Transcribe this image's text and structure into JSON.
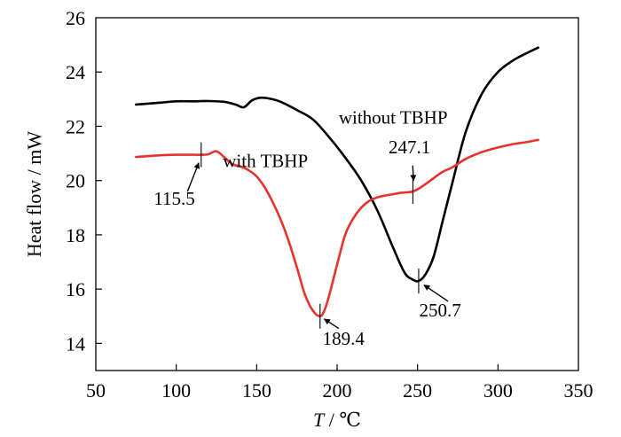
{
  "chart_data": {
    "type": "line",
    "title": "",
    "xlabel": "T / ℃",
    "xlabel_var": "T",
    "xlabel_unit": " / ℃",
    "ylabel": "Heat flow / mW",
    "xlim": [
      50,
      350
    ],
    "ylim": [
      13,
      26
    ],
    "xticks": [
      50,
      100,
      150,
      200,
      250,
      300,
      350
    ],
    "yticks": [
      14,
      16,
      18,
      20,
      22,
      24,
      26
    ],
    "grid": false,
    "series": [
      {
        "name": "without TBHP",
        "color": "#000000",
        "x": [
          75,
          90,
          100,
          110,
          120,
          130,
          137,
          142,
          147,
          152,
          158,
          165,
          175,
          185,
          195,
          205,
          215,
          225,
          235,
          242,
          247,
          250.7,
          255,
          260,
          266,
          272,
          280,
          290,
          300,
          310,
          318,
          325
        ],
        "y": [
          22.8,
          22.87,
          22.92,
          22.92,
          22.93,
          22.9,
          22.8,
          22.7,
          22.95,
          23.05,
          23.02,
          22.9,
          22.6,
          22.25,
          21.6,
          20.85,
          20.0,
          18.9,
          17.5,
          16.6,
          16.35,
          16.3,
          16.55,
          17.2,
          18.6,
          20.0,
          21.8,
          23.2,
          24.0,
          24.45,
          24.7,
          24.9
        ]
      },
      {
        "name": "with TBHP",
        "color": "#e8322d",
        "x": [
          75,
          90,
          100,
          110,
          115.5,
          120,
          125,
          130,
          135,
          140,
          145,
          150,
          155,
          160,
          165,
          170,
          175,
          180,
          185,
          189.4,
          192,
          195,
          200,
          205,
          210,
          215,
          220,
          225,
          230,
          235,
          240,
          247.1,
          252,
          258,
          265,
          272,
          280,
          290,
          300,
          310,
          318,
          325
        ],
        "y": [
          20.87,
          20.93,
          20.95,
          20.95,
          20.95,
          20.97,
          21.08,
          20.85,
          20.6,
          20.52,
          20.38,
          20.15,
          19.75,
          19.2,
          18.55,
          17.75,
          16.8,
          15.8,
          15.2,
          15.0,
          15.2,
          15.75,
          16.9,
          18.0,
          18.6,
          19.0,
          19.25,
          19.38,
          19.45,
          19.5,
          19.55,
          19.6,
          19.75,
          20.0,
          20.3,
          20.5,
          20.8,
          21.05,
          21.22,
          21.35,
          21.42,
          21.5
        ]
      }
    ],
    "series_labels": [
      {
        "text": "without TBHP",
        "series": "without TBHP",
        "x": 201,
        "y": 22.1
      },
      {
        "text": "with TBHP",
        "series": "with TBHP",
        "x": 129,
        "y": 20.5
      }
    ],
    "annotations": [
      {
        "label": "115.5",
        "series": "with TBHP",
        "x": 115.5,
        "y": 20.95,
        "text_x": 86,
        "text_y": 19.1,
        "arrow_start": [
          107,
          19.6
        ],
        "arrow_end": [
          114,
          20.65
        ]
      },
      {
        "label": "189.4",
        "series": "with TBHP",
        "x": 189.4,
        "y": 15.0,
        "text_x": 191,
        "text_y": 13.95,
        "arrow_start": [
          201,
          14.55
        ],
        "arrow_end": [
          192,
          14.9
        ]
      },
      {
        "label": "247.1",
        "series": "with TBHP",
        "x": 247.1,
        "y": 19.6,
        "text_x": 232,
        "text_y": 21.0,
        "arrow_start": [
          247,
          20.55
        ],
        "arrow_end": [
          247.5,
          20.0
        ]
      },
      {
        "label": "250.7",
        "series": "without TBHP",
        "x": 250.7,
        "y": 16.3,
        "text_x": 251,
        "text_y": 15.0,
        "arrow_start": [
          269,
          15.55
        ],
        "arrow_end": [
          254,
          16.15
        ]
      }
    ]
  }
}
